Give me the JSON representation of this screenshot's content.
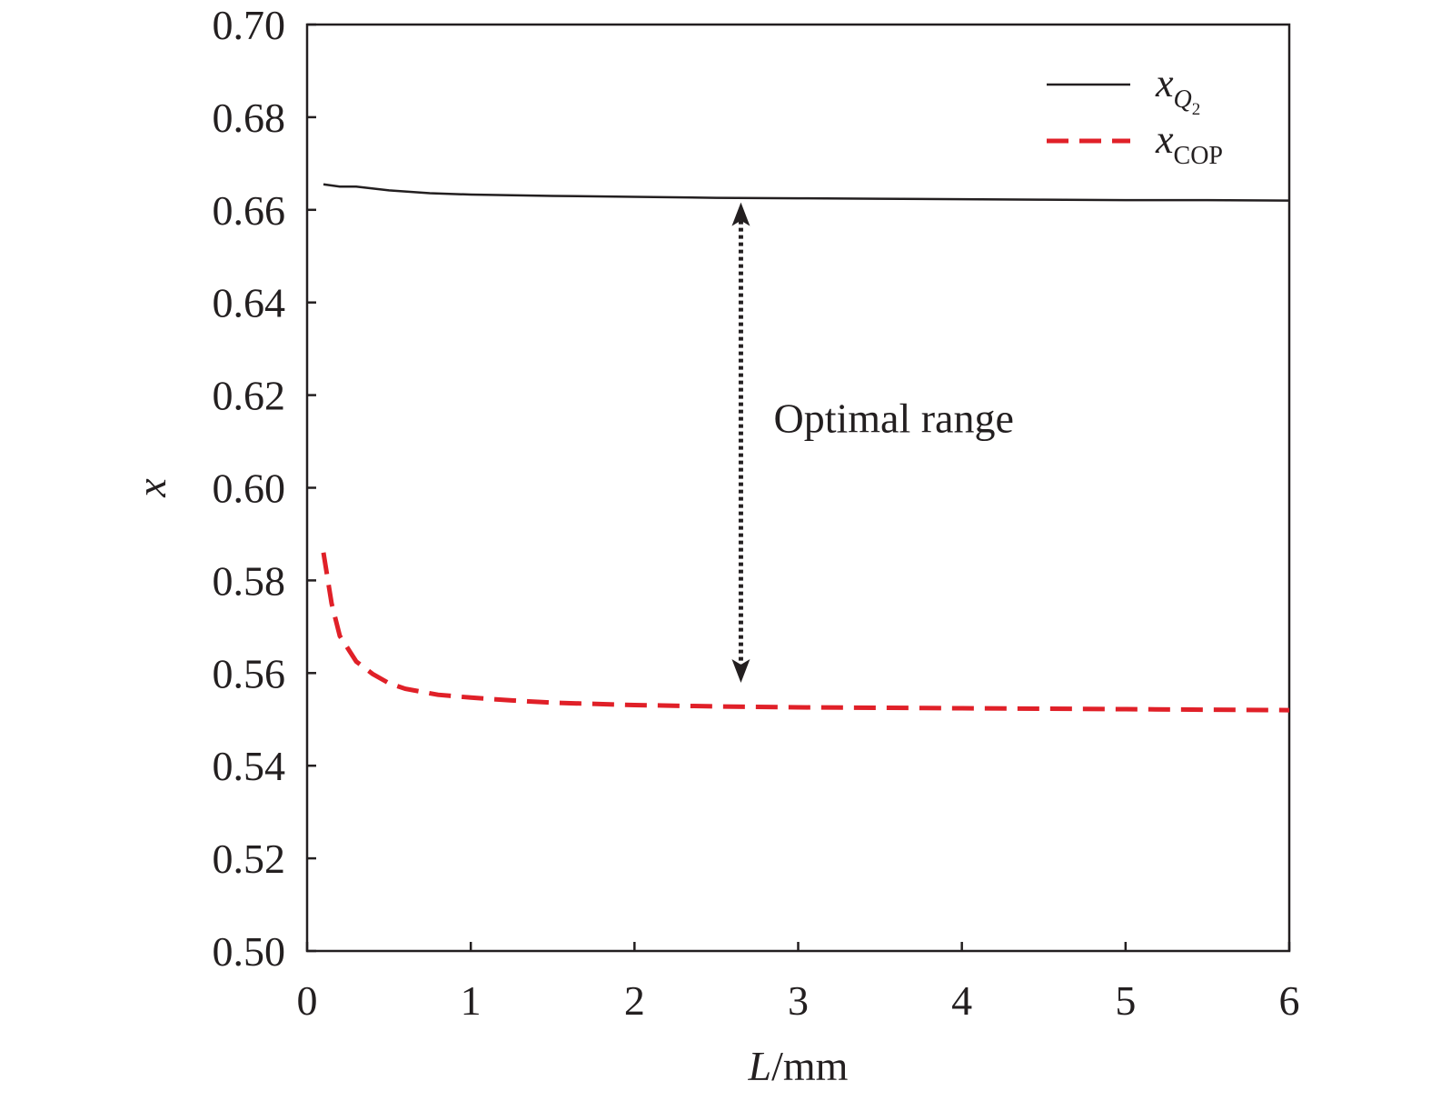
{
  "chart_data": {
    "type": "line",
    "title": "",
    "xlabel": {
      "italic": "L",
      "rest": "/mm"
    },
    "ylabel": "x",
    "xlim": [
      0,
      6
    ],
    "ylim": [
      0.5,
      0.7
    ],
    "xticks": [
      "0",
      "1",
      "2",
      "3",
      "4",
      "5",
      "6"
    ],
    "yticks": [
      "0.50",
      "0.52",
      "0.54",
      "0.56",
      "0.58",
      "0.60",
      "0.62",
      "0.64",
      "0.66",
      "0.68",
      "0.70"
    ],
    "grid": false,
    "legend_position": "top-right",
    "series": [
      {
        "name": "x_Q2",
        "legend_base": "x",
        "legend_sub": "Q",
        "legend_subsub": "2",
        "color": "#231f20",
        "style": "solid",
        "x": [
          0.1,
          0.2,
          0.3,
          0.5,
          0.75,
          1.0,
          1.5,
          2.0,
          2.5,
          3.0,
          3.5,
          4.0,
          4.5,
          5.0,
          5.5,
          6.0
        ],
        "y": [
          0.6655,
          0.665,
          0.665,
          0.6642,
          0.6636,
          0.6633,
          0.663,
          0.6628,
          0.6626,
          0.6625,
          0.6624,
          0.6623,
          0.6622,
          0.6621,
          0.6621,
          0.662
        ]
      },
      {
        "name": "x_COP",
        "legend_base": "x",
        "legend_sub": "COP",
        "color": "#e02028",
        "style": "dashed",
        "x": [
          0.1,
          0.15,
          0.2,
          0.3,
          0.4,
          0.5,
          0.6,
          0.8,
          1.0,
          1.25,
          1.5,
          2.0,
          2.5,
          3.0,
          3.5,
          4.0,
          4.5,
          5.0,
          5.5,
          6.0
        ],
        "y": [
          0.586,
          0.575,
          0.568,
          0.5625,
          0.5598,
          0.5578,
          0.5566,
          0.5553,
          0.5547,
          0.5541,
          0.5536,
          0.5531,
          0.5528,
          0.5526,
          0.5525,
          0.5524,
          0.5523,
          0.5522,
          0.5521,
          0.552
        ]
      }
    ],
    "annotation": {
      "text": "Optimal range",
      "arrow_x": 2.65,
      "arrow_y_top": 0.662,
      "arrow_y_bottom": 0.5575,
      "text_x": 2.85,
      "text_y": 0.612
    }
  }
}
